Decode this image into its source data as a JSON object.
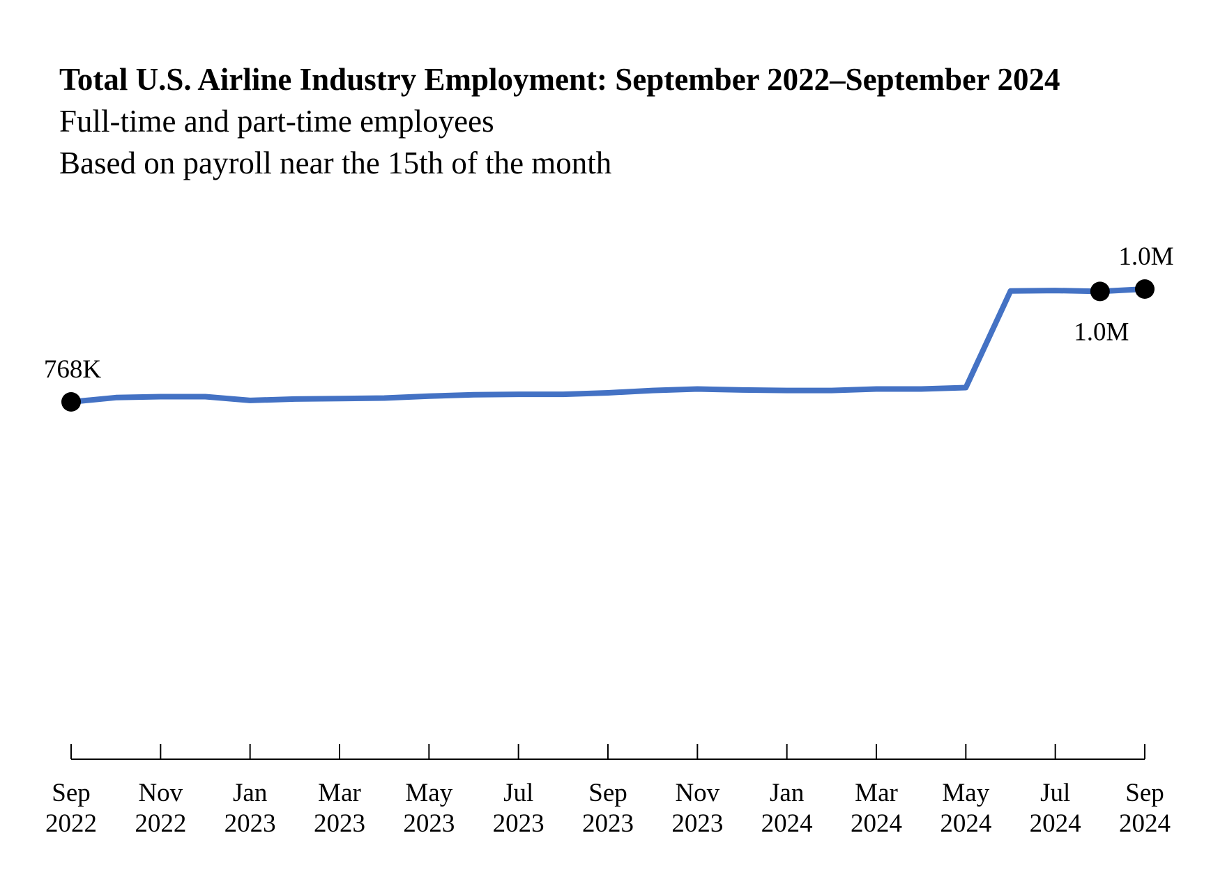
{
  "header": {
    "title": "Total U.S. Airline Industry Employment: September 2022–September 2024",
    "subtitle_1": "Full-time and part-time employees",
    "subtitle_2": "Based on payroll near the 15th of the month"
  },
  "chart_data": {
    "type": "line",
    "title": "Total U.S. Airline Industry Employment: September 2022–September 2024",
    "subtitle": [
      "Full-time and part-time employees",
      "Based on payroll near the 15th of the month"
    ],
    "xlabel": "",
    "ylabel": "",
    "grid": false,
    "y_axis_visible": false,
    "ylim": [
      0,
      1050000
    ],
    "x": [
      "Sep 2022",
      "Oct 2022",
      "Nov 2022",
      "Dec 2022",
      "Jan 2023",
      "Feb 2023",
      "Mar 2023",
      "Apr 2023",
      "May 2023",
      "Jun 2023",
      "Jul 2023",
      "Aug 2023",
      "Sep 2023",
      "Oct 2023",
      "Nov 2023",
      "Dec 2023",
      "Jan 2024",
      "Feb 2024",
      "Mar 2024",
      "Apr 2024",
      "May 2024",
      "Jun 2024",
      "Jul 2024",
      "Aug 2024",
      "Sep 2024"
    ],
    "series": [
      {
        "values": [
          768000,
          777000,
          779000,
          779000,
          771000,
          774000,
          775000,
          776000,
          780000,
          783000,
          784000,
          784000,
          787000,
          792000,
          795000,
          793000,
          792000,
          792000,
          795000,
          795000,
          798000,
          1001000,
          1002000,
          1000000,
          1005000
        ],
        "color": "#4472C4"
      }
    ],
    "xtick_labels": [
      {
        "month": "Sep",
        "year": "2022"
      },
      {
        "month": "Nov",
        "year": "2022"
      },
      {
        "month": "Jan",
        "year": "2023"
      },
      {
        "month": "Mar",
        "year": "2023"
      },
      {
        "month": "May",
        "year": "2023"
      },
      {
        "month": "Jul",
        "year": "2023"
      },
      {
        "month": "Sep",
        "year": "2023"
      },
      {
        "month": "Nov",
        "year": "2023"
      },
      {
        "month": "Jan",
        "year": "2024"
      },
      {
        "month": "Mar",
        "year": "2024"
      },
      {
        "month": "May",
        "year": "2024"
      },
      {
        "month": "Jul",
        "year": "2024"
      },
      {
        "month": "Sep",
        "year": "2024"
      }
    ],
    "annotations": [
      {
        "x": "Sep 2022",
        "label": "768K",
        "position": "above"
      },
      {
        "x": "Aug 2024",
        "label": "1.0M",
        "position": "below"
      },
      {
        "x": "Sep 2024",
        "label": "1.0M",
        "position": "above"
      }
    ],
    "marker_color": "#000000"
  }
}
